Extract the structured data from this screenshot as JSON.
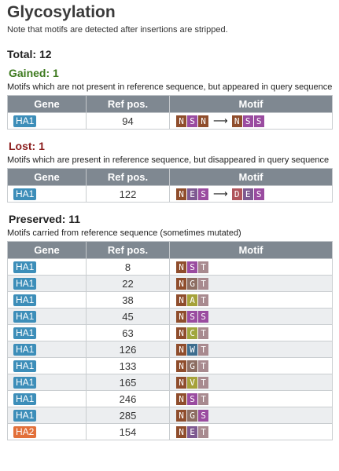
{
  "title": "Glycosylation",
  "note": "Note that motifs are detected after insertions are stripped.",
  "total": "Total: 12",
  "colors": {
    "gene": {
      "HA1": "#3d8eb9",
      "HA2": "#e2703a"
    },
    "aa": {
      "N": "#8f4d2c",
      "S": "#9a4ca0",
      "T": "#a88a8f",
      "G": "#8d6e63",
      "A": "#a6a23a",
      "E": "#7e5a91",
      "D": "#b0555c",
      "C": "#a0a63e",
      "W": "#3e6e8f",
      "V": "#a6a23a"
    },
    "header_bg": "#7f8891"
  },
  "columns": [
    "Gene",
    "Ref pos.",
    "Motif"
  ],
  "gained": {
    "title": "Gained: 1",
    "desc": "Motifs which are not present in reference sequence, but appeared in query sequence",
    "rows": [
      {
        "gene": "HA1",
        "pos": "94",
        "ref_motif": [
          "N",
          "S",
          "N"
        ],
        "query_motif": [
          "N",
          "S",
          "S"
        ]
      }
    ]
  },
  "lost": {
    "title": "Lost: 1",
    "desc": "Motifs which are present in reference sequence, but disappeared in query sequence",
    "rows": [
      {
        "gene": "HA1",
        "pos": "122",
        "ref_motif": [
          "N",
          "E",
          "S"
        ],
        "query_motif": [
          "D",
          "E",
          "S"
        ]
      }
    ]
  },
  "preserved": {
    "title": "Preserved: 11",
    "desc": "Motifs carried from reference sequence (sometimes mutated)",
    "rows": [
      {
        "gene": "HA1",
        "pos": "8",
        "motif": [
          "N",
          "S",
          "T"
        ]
      },
      {
        "gene": "HA1",
        "pos": "22",
        "motif": [
          "N",
          "G",
          "T"
        ]
      },
      {
        "gene": "HA1",
        "pos": "38",
        "motif": [
          "N",
          "A",
          "T"
        ]
      },
      {
        "gene": "HA1",
        "pos": "45",
        "motif": [
          "N",
          "S",
          "S"
        ]
      },
      {
        "gene": "HA1",
        "pos": "63",
        "motif": [
          "N",
          "C",
          "T"
        ]
      },
      {
        "gene": "HA1",
        "pos": "126",
        "motif": [
          "N",
          "W",
          "T"
        ]
      },
      {
        "gene": "HA1",
        "pos": "133",
        "motif": [
          "N",
          "G",
          "T"
        ]
      },
      {
        "gene": "HA1",
        "pos": "165",
        "motif": [
          "N",
          "V",
          "T"
        ]
      },
      {
        "gene": "HA1",
        "pos": "246",
        "motif": [
          "N",
          "S",
          "T"
        ]
      },
      {
        "gene": "HA1",
        "pos": "285",
        "motif": [
          "N",
          "G",
          "S"
        ]
      },
      {
        "gene": "HA2",
        "pos": "154",
        "motif": [
          "N",
          "E",
          "T"
        ]
      }
    ]
  },
  "arrow": "⟶"
}
